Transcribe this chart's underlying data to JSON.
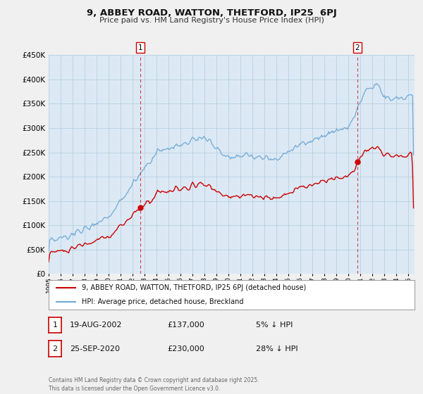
{
  "title": "9, ABBEY ROAD, WATTON, THETFORD, IP25  6PJ",
  "subtitle": "Price paid vs. HM Land Registry's House Price Index (HPI)",
  "background_color": "#f0f0f0",
  "plot_bg_color": "#dce9f5",
  "grid_color": "#b8cfe0",
  "hpi_color": "#6fa8d4",
  "price_color": "#cc0000",
  "marker1_date": 2002.63,
  "marker1_price": 137000,
  "marker1_label": "1",
  "marker1_text": "19-AUG-2002",
  "marker1_amount": "£137,000",
  "marker1_pct": "5% ↓ HPI",
  "marker2_date": 2020.73,
  "marker2_price": 230000,
  "marker2_label": "2",
  "marker2_text": "25-SEP-2020",
  "marker2_amount": "£230,000",
  "marker2_pct": "28% ↓ HPI",
  "ylim": [
    0,
    450000
  ],
  "yticks": [
    0,
    50000,
    100000,
    150000,
    200000,
    250000,
    300000,
    350000,
    400000,
    450000
  ],
  "xlim": [
    1995,
    2025.5
  ],
  "legend_line1": "9, ABBEY ROAD, WATTON, THETFORD, IP25 6PJ (detached house)",
  "legend_line2": "HPI: Average price, detached house, Breckland",
  "footer": "Contains HM Land Registry data © Crown copyright and database right 2025.\nThis data is licensed under the Open Government Licence v3.0."
}
